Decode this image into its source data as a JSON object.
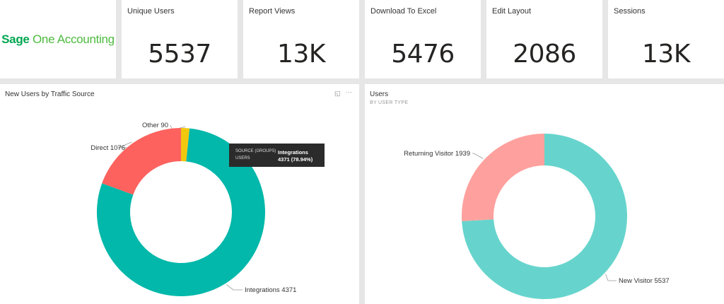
{
  "brand": {
    "sage": "Sage",
    "rest": " One Accounting",
    "color": "#00a651"
  },
  "kpis": [
    {
      "label": "Unique Users",
      "value": "5537"
    },
    {
      "label": "Report Views",
      "value": "13K"
    },
    {
      "label": "Download To Excel",
      "value": "5476"
    },
    {
      "label": "Edit Layout",
      "value": "2086"
    },
    {
      "label": "Sessions",
      "value": "13K"
    }
  ],
  "left_panel": {
    "title": "New Users by Traffic Source",
    "icons": [
      "focus-mode-icon",
      "more-options-icon"
    ]
  },
  "right_panel": {
    "title": "Users",
    "subtitle": "BY USER TYPE"
  },
  "tooltip": {
    "key1": "SOURCE (GROUPS)",
    "val1": "Integrations",
    "key2": "USERS",
    "val2": "4371 (78.94%)"
  },
  "chart_data": [
    {
      "type": "pie",
      "title": "New Users by Traffic Source",
      "categories": [
        "Other",
        "Integrations",
        "Direct"
      ],
      "values": [
        90,
        4371,
        1076
      ],
      "labels": [
        "Other 90",
        "Integrations 4371",
        "Direct 1076"
      ],
      "colors": [
        "#f2c80f",
        "#01b8aa",
        "#fd625e"
      ],
      "donut": true
    },
    {
      "type": "pie",
      "title": "Users",
      "subtitle": "BY USER TYPE",
      "categories": [
        "New Visitor",
        "Returning Visitor"
      ],
      "values": [
        5537,
        1939
      ],
      "labels": [
        "New Visitor 5537",
        "Returning Visitor 1939"
      ],
      "colors": [
        "#66d4cc",
        "#fea19e"
      ],
      "donut": true
    }
  ]
}
